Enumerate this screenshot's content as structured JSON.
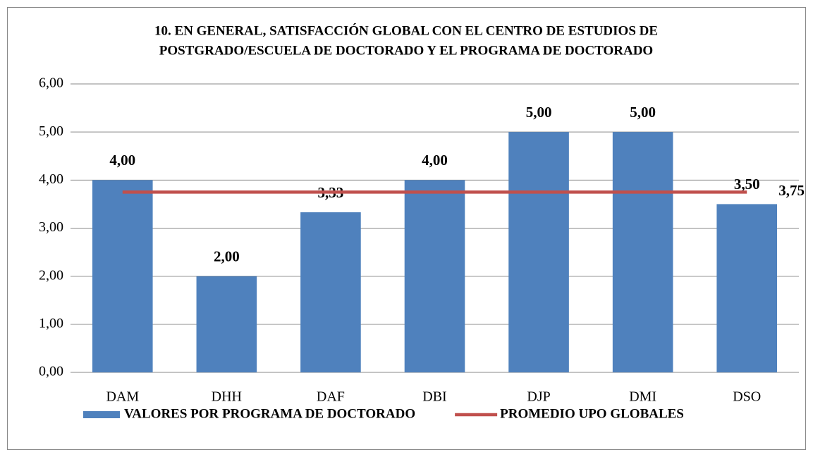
{
  "chart_data": {
    "type": "bar",
    "title": [
      "10. EN GENERAL, SATISFACCIÓN GLOBAL CON EL CENTRO DE ESTUDIOS DE",
      "POSTGRADO/ESCUELA DE DOCTORADO Y EL PROGRAMA DE DOCTORADO"
    ],
    "categories": [
      "DAM",
      "DHH",
      "DAF",
      "DBI",
      "DJP",
      "DMI",
      "DSO"
    ],
    "series": [
      {
        "name": "VALORES POR PROGRAMA DE DOCTORADO",
        "type": "bar",
        "color": "#4f81bd",
        "values": [
          4,
          2,
          3.33,
          4,
          5,
          5,
          3.5
        ],
        "value_labels": [
          "4,00",
          "2,00",
          "3,33",
          "4,00",
          "5,00",
          "5,00",
          "3,50"
        ]
      },
      {
        "name": "PROMEDIO UPO GLOBALES",
        "type": "line",
        "color": "#c0504d",
        "values": [
          3.75,
          3.75,
          3.75,
          3.75,
          3.75,
          3.75,
          3.75
        ],
        "value_labels": [
          null,
          null,
          null,
          null,
          null,
          null,
          "3,75"
        ]
      }
    ],
    "ylim": [
      0,
      6
    ],
    "yticks": [
      {
        "value": 0,
        "label": "0,00"
      },
      {
        "value": 1,
        "label": "1,00"
      },
      {
        "value": 2,
        "label": "2,00"
      },
      {
        "value": 3,
        "label": "3,00"
      },
      {
        "value": 4,
        "label": "4,00"
      },
      {
        "value": 5,
        "label": "5,00"
      },
      {
        "value": 6,
        "label": "6,00"
      }
    ],
    "grid": true,
    "legend": "bottom"
  }
}
